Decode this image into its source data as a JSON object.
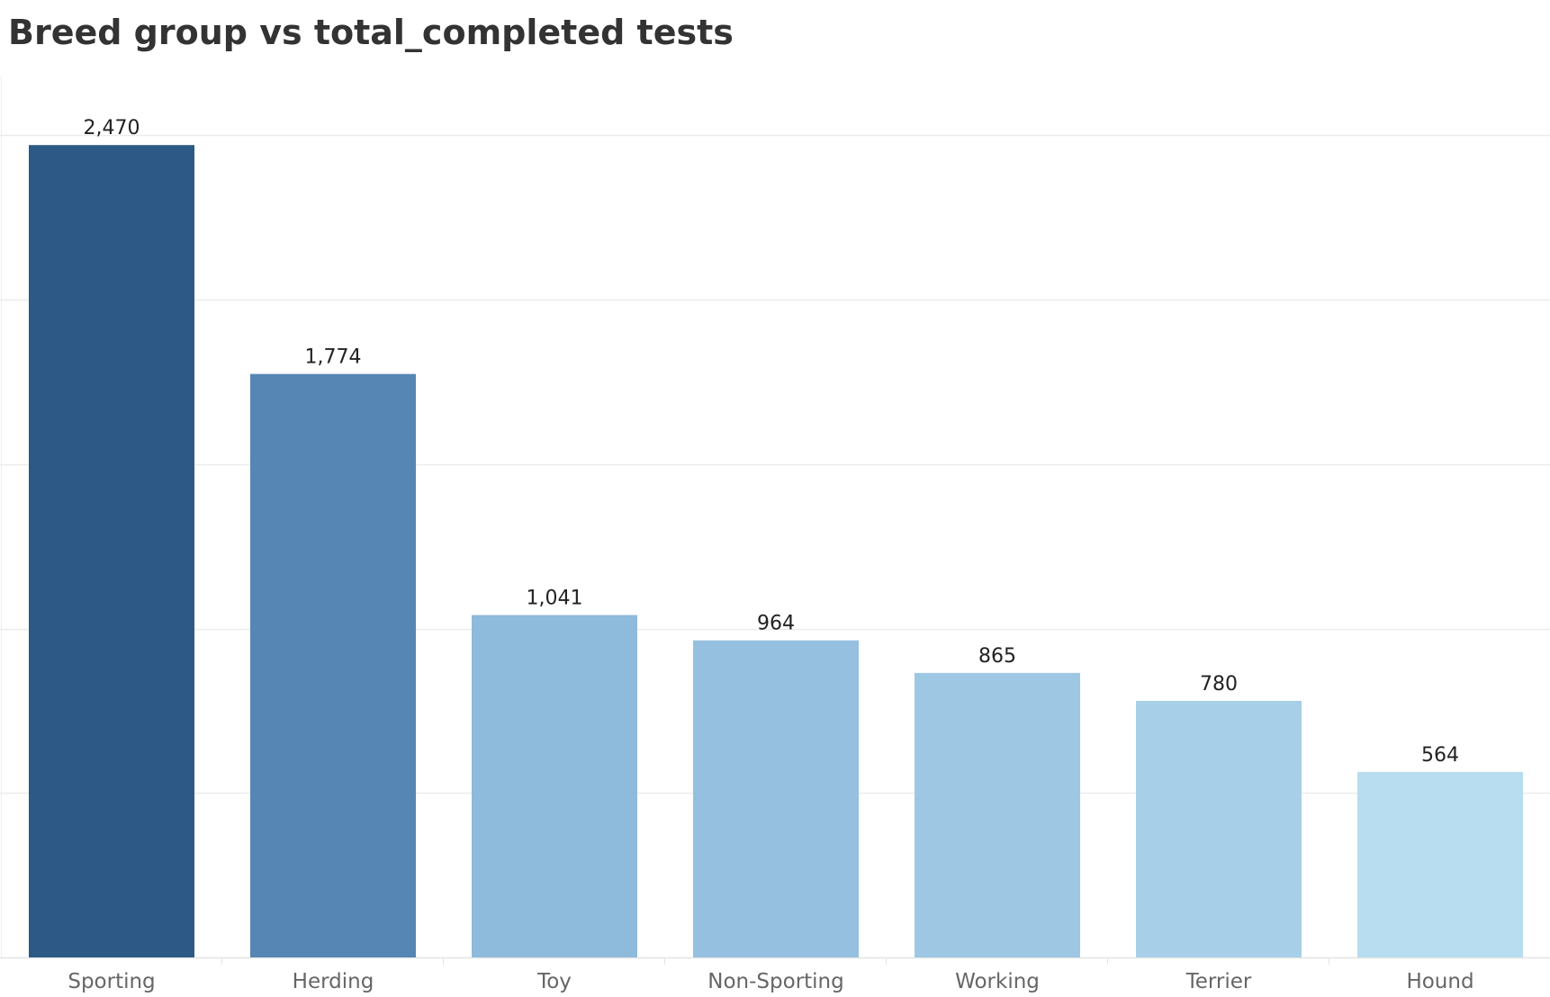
{
  "chart_data": {
    "type": "bar",
    "title": "Breed group vs total_completed tests",
    "xlabel": "",
    "ylabel": "",
    "categories": [
      "Sporting",
      "Herding",
      "Toy",
      "Non-Sporting",
      "Working",
      "Terrier",
      "Hound"
    ],
    "values": [
      2470,
      1774,
      1041,
      964,
      865,
      780,
      564
    ],
    "value_labels": [
      "2,470",
      "1,774",
      "1,041",
      "964",
      "865",
      "780",
      "564"
    ],
    "ylim": [
      0,
      2500
    ],
    "gridlines": [
      500,
      1000,
      1500,
      2000,
      2500
    ],
    "grid": true,
    "legend": "none",
    "colors": [
      "#2c5985",
      "#5686b4",
      "#8ebadb",
      "#95c0e0",
      "#9ec7e4",
      "#a7cfe7",
      "#b9ddf0"
    ]
  }
}
